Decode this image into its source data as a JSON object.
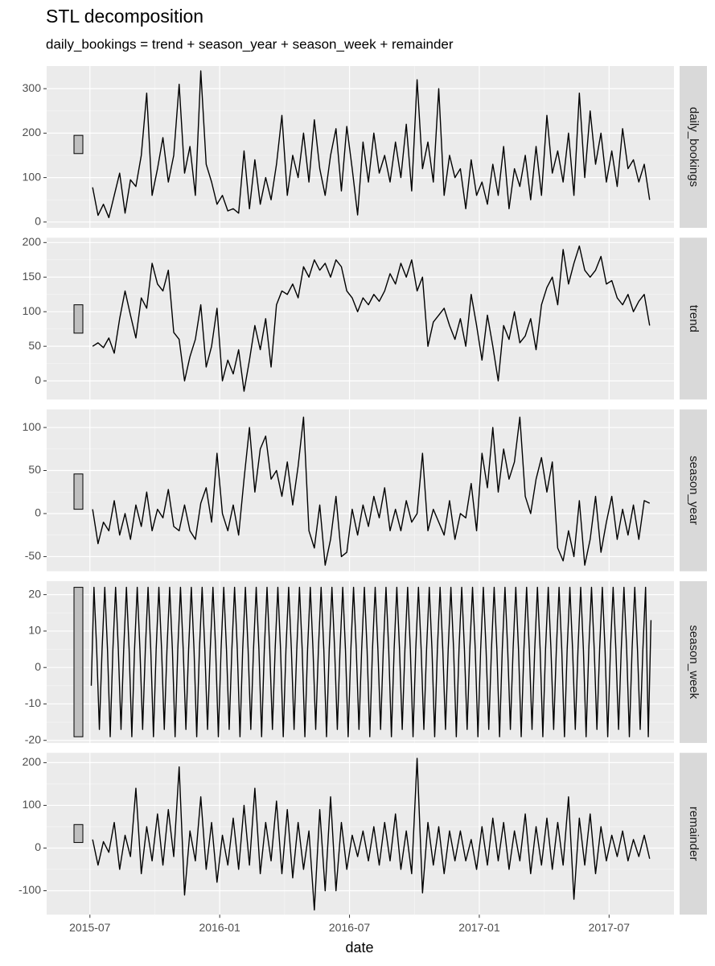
{
  "title": "STL decomposition",
  "subtitle": "daily_bookings = trend + season_year + season_week + remainder",
  "x_label": "date",
  "xlim": [
    "2015-05",
    "2017-10"
  ],
  "xticks": [
    "2015-07",
    "2016-01",
    "2016-07",
    "2017-01",
    "2017-07"
  ],
  "x": [
    "2015-07",
    "2015-07",
    "2015-07",
    "2015-07",
    "2015-08",
    "2015-08",
    "2015-08",
    "2015-08",
    "2015-09",
    "2015-09",
    "2015-09",
    "2015-09",
    "2015-10",
    "2015-10",
    "2015-10",
    "2015-10",
    "2015-11",
    "2015-11",
    "2015-11",
    "2015-11",
    "2015-12",
    "2015-12",
    "2015-12",
    "2015-12",
    "2016-01",
    "2016-01",
    "2016-01",
    "2016-01",
    "2016-02",
    "2016-02",
    "2016-02",
    "2016-02",
    "2016-03",
    "2016-03",
    "2016-03",
    "2016-03",
    "2016-04",
    "2016-04",
    "2016-04",
    "2016-04",
    "2016-05",
    "2016-05",
    "2016-05",
    "2016-05",
    "2016-06",
    "2016-06",
    "2016-06",
    "2016-06",
    "2016-07",
    "2016-07",
    "2016-07",
    "2016-07",
    "2016-08",
    "2016-08",
    "2016-08",
    "2016-08",
    "2016-09",
    "2016-09",
    "2016-09",
    "2016-09",
    "2016-10",
    "2016-10",
    "2016-10",
    "2016-10",
    "2016-11",
    "2016-11",
    "2016-11",
    "2016-11",
    "2016-12",
    "2016-12",
    "2016-12",
    "2016-12",
    "2017-01",
    "2017-01",
    "2017-01",
    "2017-01",
    "2017-02",
    "2017-02",
    "2017-02",
    "2017-02",
    "2017-03",
    "2017-03",
    "2017-03",
    "2017-03",
    "2017-04",
    "2017-04",
    "2017-04",
    "2017-04",
    "2017-05",
    "2017-05",
    "2017-05",
    "2017-05",
    "2017-06",
    "2017-06",
    "2017-06",
    "2017-06",
    "2017-07",
    "2017-07",
    "2017-07",
    "2017-07",
    "2017-08",
    "2017-08",
    "2017-08",
    "2017-08"
  ],
  "chart_data": [
    {
      "type": "line",
      "label": "daily_bookings",
      "color": "#000000",
      "ylim": [
        -13,
        351
      ],
      "yticks": [
        0,
        100,
        200,
        300
      ],
      "range_bar": [
        154,
        195
      ],
      "values": [
        78,
        15,
        40,
        10,
        60,
        110,
        20,
        95,
        80,
        150,
        290,
        60,
        120,
        190,
        90,
        150,
        310,
        110,
        170,
        60,
        340,
        130,
        90,
        40,
        60,
        25,
        30,
        20,
        160,
        30,
        140,
        40,
        100,
        50,
        130,
        240,
        60,
        150,
        100,
        200,
        90,
        230,
        120,
        60,
        150,
        210,
        70,
        215,
        120,
        16,
        180,
        90,
        200,
        110,
        150,
        90,
        180,
        100,
        220,
        70,
        320,
        120,
        180,
        90,
        300,
        60,
        150,
        100,
        120,
        30,
        140,
        60,
        90,
        40,
        130,
        60,
        170,
        30,
        120,
        80,
        150,
        50,
        170,
        60,
        240,
        110,
        160,
        90,
        200,
        60,
        290,
        100,
        250,
        130,
        200,
        90,
        160,
        80,
        210,
        120,
        140,
        90,
        130,
        50
      ]
    },
    {
      "type": "line",
      "label": "trend",
      "color": "#000000",
      "ylim": [
        -27,
        207
      ],
      "yticks": [
        0,
        50,
        100,
        150,
        200
      ],
      "range_bar": [
        69,
        110
      ],
      "values": [
        50,
        55,
        48,
        62,
        40,
        90,
        130,
        95,
        62,
        120,
        105,
        170,
        140,
        130,
        160,
        70,
        60,
        0,
        35,
        60,
        110,
        20,
        50,
        105,
        0,
        30,
        10,
        45,
        -15,
        30,
        80,
        45,
        90,
        20,
        110,
        130,
        125,
        140,
        120,
        165,
        150,
        175,
        160,
        170,
        150,
        175,
        165,
        130,
        120,
        100,
        120,
        110,
        125,
        115,
        130,
        155,
        140,
        170,
        150,
        175,
        130,
        150,
        50,
        85,
        95,
        105,
        80,
        60,
        90,
        50,
        125,
        80,
        30,
        95,
        50,
        0,
        80,
        60,
        100,
        55,
        65,
        90,
        45,
        110,
        135,
        150,
        110,
        190,
        140,
        170,
        195,
        160,
        150,
        160,
        180,
        140,
        145,
        120,
        110,
        125,
        100,
        115,
        125,
        80
      ]
    },
    {
      "type": "line",
      "label": "season_year",
      "color": "#000000",
      "ylim": [
        -67,
        121
      ],
      "yticks": [
        -50,
        0,
        50,
        100
      ],
      "range_bar": [
        5,
        46
      ],
      "values": [
        5,
        -35,
        -10,
        -20,
        15,
        -25,
        0,
        -30,
        10,
        -15,
        25,
        -20,
        5,
        -5,
        28,
        -15,
        -20,
        10,
        -20,
        -30,
        12,
        30,
        -10,
        70,
        0,
        -20,
        10,
        -25,
        40,
        100,
        25,
        75,
        90,
        40,
        50,
        20,
        60,
        10,
        55,
        112,
        -20,
        -40,
        10,
        -60,
        -30,
        20,
        -50,
        -45,
        5,
        -25,
        10,
        -15,
        20,
        -5,
        30,
        -20,
        5,
        -20,
        15,
        -10,
        0,
        70,
        -20,
        5,
        -10,
        -25,
        15,
        -30,
        0,
        -5,
        35,
        -20,
        70,
        30,
        100,
        25,
        75,
        40,
        60,
        112,
        20,
        0,
        40,
        65,
        25,
        60,
        -40,
        -55,
        -20,
        -50,
        15,
        -60,
        -30,
        20,
        -45,
        -10,
        20,
        -30,
        5,
        -25,
        10,
        -30,
        15,
        12
      ]
    },
    {
      "type": "line",
      "label": "season_week",
      "color": "#000000",
      "ylim": [
        -20.7,
        23.7
      ],
      "yticks": [
        -20,
        -10,
        0,
        10,
        20
      ],
      "range_bar": [
        -19,
        22
      ],
      "x": [
        "2015-07",
        "2015-07",
        "2015-07",
        "2015-07",
        "2015-07",
        "2015-07",
        "2015-07",
        "2015-07",
        "2015-08",
        "2015-08",
        "2015-08",
        "2015-08",
        "2015-08",
        "2015-08",
        "2015-08",
        "2015-08",
        "2015-09",
        "2015-09",
        "2015-09",
        "2015-09",
        "2015-09",
        "2015-09",
        "2015-09",
        "2015-09",
        "2015-10",
        "2015-10",
        "2015-10",
        "2015-10",
        "2015-10",
        "2015-10",
        "2015-10",
        "2015-10",
        "2015-11",
        "2015-11",
        "2015-11",
        "2015-11",
        "2015-11",
        "2015-11",
        "2015-11",
        "2015-11",
        "2015-12",
        "2015-12",
        "2015-12",
        "2015-12",
        "2015-12",
        "2015-12",
        "2015-12",
        "2015-12",
        "2016-01",
        "2016-01",
        "2016-01",
        "2016-01",
        "2016-01",
        "2016-01",
        "2016-01",
        "2016-01",
        "2016-02",
        "2016-02",
        "2016-02",
        "2016-02",
        "2016-02",
        "2016-02",
        "2016-02",
        "2016-02",
        "2016-03",
        "2016-03",
        "2016-03",
        "2016-03",
        "2016-03",
        "2016-03",
        "2016-03",
        "2016-03",
        "2016-04",
        "2016-04",
        "2016-04",
        "2016-04",
        "2016-04",
        "2016-04",
        "2016-04",
        "2016-04",
        "2016-05",
        "2016-05",
        "2016-05",
        "2016-05",
        "2016-05",
        "2016-05",
        "2016-05",
        "2016-05",
        "2016-06",
        "2016-06",
        "2016-06",
        "2016-06",
        "2016-06",
        "2016-06",
        "2016-06",
        "2016-06",
        "2016-07",
        "2016-07",
        "2016-07",
        "2016-07",
        "2016-07",
        "2016-07",
        "2016-07",
        "2016-07",
        "2016-08",
        "2016-08",
        "2016-08",
        "2016-08",
        "2016-08",
        "2016-08",
        "2016-08",
        "2016-08",
        "2016-09",
        "2016-09",
        "2016-09",
        "2016-09",
        "2016-09",
        "2016-09",
        "2016-09",
        "2016-09",
        "2016-10",
        "2016-10",
        "2016-10",
        "2016-10",
        "2016-10",
        "2016-10",
        "2016-10",
        "2016-10",
        "2016-11",
        "2016-11",
        "2016-11",
        "2016-11",
        "2016-11",
        "2016-11",
        "2016-11",
        "2016-11",
        "2016-12",
        "2016-12",
        "2016-12",
        "2016-12",
        "2016-12",
        "2016-12",
        "2016-12",
        "2016-12",
        "2017-01",
        "2017-01",
        "2017-01",
        "2017-01",
        "2017-01",
        "2017-01",
        "2017-01",
        "2017-01",
        "2017-02",
        "2017-02",
        "2017-02",
        "2017-02",
        "2017-02",
        "2017-02",
        "2017-02",
        "2017-02",
        "2017-03",
        "2017-03",
        "2017-03",
        "2017-03",
        "2017-03",
        "2017-03",
        "2017-03",
        "2017-03",
        "2017-04",
        "2017-04",
        "2017-04",
        "2017-04",
        "2017-04",
        "2017-04",
        "2017-04",
        "2017-04",
        "2017-05",
        "2017-05",
        "2017-05",
        "2017-05",
        "2017-05",
        "2017-05",
        "2017-05",
        "2017-05",
        "2017-06",
        "2017-06",
        "2017-06",
        "2017-06",
        "2017-06",
        "2017-06",
        "2017-06",
        "2017-06",
        "2017-07",
        "2017-07",
        "2017-07",
        "2017-07",
        "2017-07",
        "2017-07",
        "2017-07",
        "2017-07",
        "2017-08",
        "2017-08",
        "2017-08",
        "2017-08",
        "2017-08",
        "2017-08",
        "2017-08",
        "2017-08"
      ],
      "values": [
        -5,
        22,
        5,
        -17,
        5,
        22,
        5,
        -19,
        5,
        22,
        5,
        -17,
        5,
        22,
        5,
        -19,
        5,
        22,
        5,
        -17,
        5,
        22,
        5,
        -19,
        5,
        22,
        5,
        -17,
        5,
        22,
        5,
        -19,
        5,
        22,
        5,
        -17,
        5,
        22,
        5,
        -19,
        5,
        22,
        5,
        -17,
        5,
        22,
        5,
        -19,
        5,
        22,
        5,
        -17,
        5,
        22,
        5,
        -19,
        5,
        22,
        5,
        -17,
        5,
        22,
        5,
        -19,
        5,
        22,
        5,
        -17,
        5,
        22,
        5,
        -19,
        5,
        22,
        5,
        -17,
        5,
        22,
        5,
        -19,
        5,
        22,
        5,
        -17,
        5,
        22,
        5,
        -19,
        5,
        22,
        5,
        -17,
        5,
        22,
        5,
        -19,
        5,
        22,
        5,
        -17,
        5,
        22,
        5,
        -19,
        5,
        22,
        5,
        -17,
        5,
        22,
        5,
        -19,
        5,
        22,
        5,
        -17,
        5,
        22,
        5,
        -19,
        5,
        22,
        5,
        -17,
        5,
        22,
        5,
        -19,
        5,
        22,
        5,
        -17,
        5,
        22,
        5,
        -19,
        5,
        22,
        5,
        -17,
        5,
        22,
        5,
        -19,
        5,
        22,
        5,
        -17,
        5,
        22,
        5,
        -19,
        5,
        22,
        5,
        -17,
        5,
        22,
        5,
        -19,
        5,
        22,
        5,
        -17,
        5,
        22,
        5,
        -19,
        5,
        22,
        5,
        -17,
        5,
        22,
        5,
        -19,
        5,
        22,
        5,
        -17,
        5,
        22,
        5,
        -19,
        5,
        22,
        5,
        -17,
        5,
        22,
        5,
        -19,
        5,
        22,
        5,
        -17,
        5,
        22,
        5,
        -19,
        5,
        22,
        5,
        -17,
        5,
        22,
        -19,
        13
      ]
    },
    {
      "type": "line",
      "label": "remainder",
      "color": "#000000",
      "ylim": [
        -156,
        223
      ],
      "yticks": [
        -100,
        0,
        100,
        200
      ],
      "range_bar": [
        13,
        55
      ],
      "values": [
        20,
        -40,
        15,
        -10,
        60,
        -50,
        30,
        -20,
        140,
        -60,
        50,
        -30,
        80,
        -40,
        90,
        -20,
        190,
        -110,
        40,
        -30,
        120,
        -50,
        60,
        -80,
        30,
        -40,
        70,
        -50,
        100,
        -40,
        140,
        -60,
        60,
        -30,
        110,
        -60,
        90,
        -70,
        60,
        -50,
        40,
        -145,
        90,
        -100,
        120,
        -100,
        60,
        -50,
        30,
        -20,
        40,
        -30,
        50,
        -40,
        60,
        -30,
        80,
        -50,
        40,
        -60,
        210,
        -105,
        60,
        -40,
        50,
        -60,
        40,
        -30,
        40,
        -30,
        20,
        -50,
        50,
        -40,
        70,
        -30,
        60,
        -50,
        40,
        -30,
        80,
        -60,
        50,
        -40,
        70,
        -50,
        60,
        -40,
        120,
        -120,
        70,
        -40,
        80,
        -60,
        50,
        -30,
        30,
        -20,
        40,
        -30,
        20,
        -20,
        30,
        -25
      ]
    }
  ]
}
